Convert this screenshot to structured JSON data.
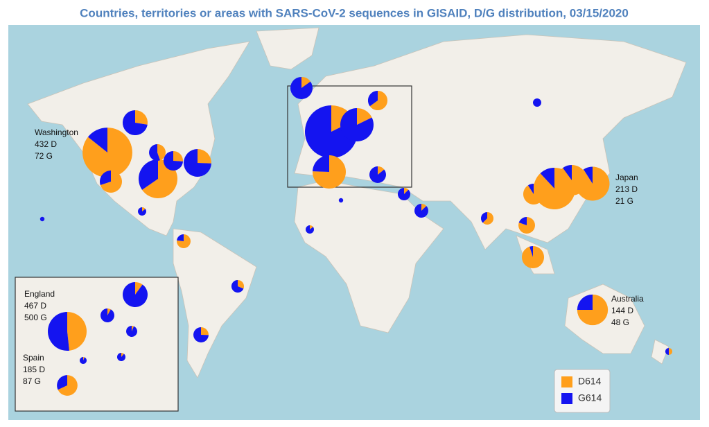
{
  "title": "Countries, territories or areas with SARS-CoV-2 sequences in GISAID, D/G distribution, 03/15/2020",
  "legend": [
    {
      "label": "D614",
      "color": "#ff9f1c"
    },
    {
      "label": "G614",
      "color": "#1414f0"
    }
  ],
  "labeled_sites": [
    {
      "name": "Washington",
      "d": {
        "value": 432,
        "label": "432 D"
      },
      "g": {
        "value": 72,
        "label": "72 G"
      }
    },
    {
      "name": "Japan",
      "d": {
        "value": 213,
        "label": "213 D"
      },
      "g": {
        "value": 21,
        "label": "21 G"
      }
    },
    {
      "name": "Australia",
      "d": {
        "value": 144,
        "label": "144 D"
      },
      "g": {
        "value": 48,
        "label": "48 G"
      }
    },
    {
      "name": "England",
      "d": {
        "value": 467,
        "label": "467 D"
      },
      "g": {
        "value": 500,
        "label": "500 G"
      }
    },
    {
      "name": "Spain",
      "d": {
        "value": 185,
        "label": "185 D"
      },
      "g": {
        "value": 87,
        "label": "87 G"
      }
    }
  ],
  "sites": [
    {
      "d": 35,
      "g": 92
    },
    {
      "d": 70,
      "g": 30
    },
    {
      "d": 200,
      "g": 106
    },
    {
      "d": 40,
      "g": 116
    },
    {
      "d": 20,
      "g": 57
    },
    {
      "d": 25,
      "g": 31
    },
    {
      "d": 2,
      "g": 12
    },
    {
      "d": 30,
      "g": 9
    },
    {
      "d": 10,
      "g": 22
    },
    {
      "d": 12,
      "g": 35
    },
    {
      "d": 15,
      "g": 85
    },
    {
      "d": 100,
      "g": 464
    },
    {
      "d": 50,
      "g": 27
    },
    {
      "d": 40,
      "g": 185
    },
    {
      "d": 170,
      "g": 55
    },
    {
      "d": 8,
      "g": 48
    },
    {
      "d": 4,
      "g": 28
    },
    {
      "d": 5,
      "g": 34
    },
    {
      "d": 20,
      "g": 12
    },
    {
      "d": 0,
      "g": 14
    },
    {
      "d": 310,
      "g": 42
    },
    {
      "d": 80,
      "g": 8
    },
    {
      "d": 170,
      "g": 19
    },
    {
      "d": 95,
      "g": 5
    },
    {
      "d": 45,
      "g": 11
    },
    {
      "d": 5,
      "g": 5
    },
    {
      "d": 0,
      "g": 4
    },
    {
      "d": 0,
      "g": 4
    },
    {
      "d": 2,
      "g": 12
    }
  ],
  "inset_sites": [
    {
      "d": 40,
      "g": 360
    },
    {
      "d": 10,
      "g": 113
    },
    {
      "d": 5,
      "g": 74
    },
    {
      "d": 2,
      "g": 29
    },
    {
      "d": 5,
      "g": 40
    }
  ]
}
